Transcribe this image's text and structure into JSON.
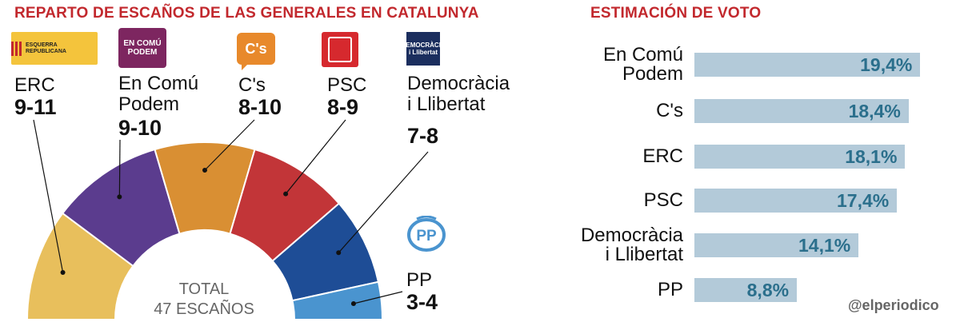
{
  "left_title": "REPARTO DE ESCAÑOS DE LAS GENERALES EN CATALUNYA",
  "right_title": "ESTIMACIÓN DE VOTO",
  "logos": {
    "erc": "ESQUERRA REPUBLICANA",
    "ecp": "EN COMÚ PODEM",
    "cs": "C's",
    "dil": "DEMOCRÀCIA i Llibertat"
  },
  "total_line1": "TOTAL",
  "total_line2": "47 ESCAÑOS",
  "credit": "@elperiodico",
  "colors": {
    "erc": "#e8bf5c",
    "ecp": "#5b3c8e",
    "cs": "#d98f33",
    "psc": "#c23538",
    "dil": "#1e4d96",
    "pp": "#4a94cf",
    "bar": "#b3cad9",
    "value": "#2b6f8c",
    "title": "#c2282d"
  },
  "chart_data": [
    {
      "type": "pie",
      "title": "REPARTO DE ESCAÑOS DE LAS GENERALES EN CATALUNYA",
      "total_label": "TOTAL 47 ESCAÑOS",
      "slices": [
        {
          "party": "ERC",
          "seats": "9-11"
        },
        {
          "party": "En Comú Podem",
          "seats": "9-10"
        },
        {
          "party": "C's",
          "seats": "8-10"
        },
        {
          "party": "PSC",
          "seats": "8-9"
        },
        {
          "party": "Democràcia i Llibertat",
          "seats": "7-8"
        },
        {
          "party": "PP",
          "seats": "3-4"
        }
      ]
    },
    {
      "type": "bar",
      "title": "ESTIMACIÓN DE VOTO",
      "categories": [
        "En Comú Podem",
        "C's",
        "ERC",
        "PSC",
        "Democràcia i Llibertat",
        "PP"
      ],
      "values": [
        19.4,
        18.4,
        18.1,
        17.4,
        14.1,
        8.8
      ],
      "value_labels": [
        "19,4%",
        "18,4%",
        "18,1%",
        "17,4%",
        "14,1%",
        "8,8%"
      ],
      "xlim": [
        0,
        20.2
      ]
    }
  ],
  "parties": [
    {
      "name_lines": [
        "ERC"
      ],
      "seats": "9-11"
    },
    {
      "name_lines": [
        "En Comú",
        "Podem"
      ],
      "seats": "9-10"
    },
    {
      "name_lines": [
        "C's"
      ],
      "seats": "8-10"
    },
    {
      "name_lines": [
        "PSC"
      ],
      "seats": "8-9"
    },
    {
      "name_lines": [
        "Democràcia",
        "i Llibertat"
      ],
      "seats": "7-8"
    },
    {
      "name_lines": [
        "PP"
      ],
      "seats": "3-4"
    }
  ],
  "vote_labels": [
    [
      "En Comú",
      "Podem"
    ],
    [
      "C's"
    ],
    [
      "ERC"
    ],
    [
      "PSC"
    ],
    [
      "Democràcia",
      "i Llibertat"
    ],
    [
      "PP"
    ]
  ]
}
